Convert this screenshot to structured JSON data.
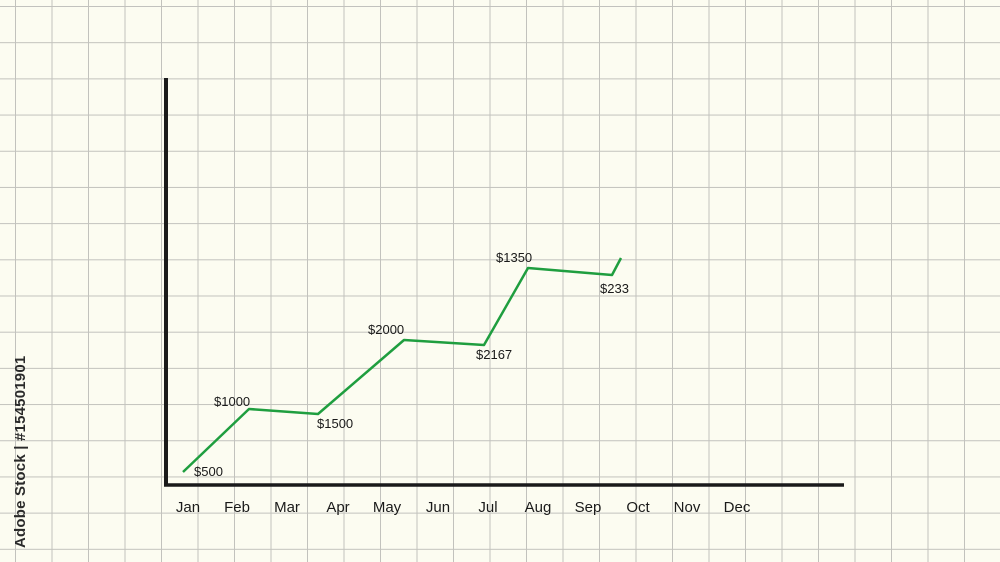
{
  "side_text": "Adobe Stock | #154501901",
  "colors": {
    "line": "#1f9e3f",
    "axis": "#1a1a1a",
    "grid": "#c2c2bd",
    "background": "#fcfcf1"
  },
  "chart_data": {
    "type": "line",
    "title": "",
    "xlabel": "",
    "ylabel": "",
    "grid": true,
    "categories": [
      "Jan",
      "Feb",
      "Mar",
      "Apr",
      "May",
      "Jun",
      "Jul",
      "Aug",
      "Sep",
      "Oct",
      "Nov",
      "Dec"
    ],
    "points": [
      {
        "x": "Jan",
        "label": "$500",
        "label_pos": "below"
      },
      {
        "x": "Feb",
        "label": "$1000",
        "label_pos": "above"
      },
      {
        "x": "Mar",
        "label": "$1500",
        "label_pos": "below"
      },
      {
        "x": "Apr",
        "label": "$2000",
        "label_pos": "above"
      },
      {
        "x": "May",
        "label": "$2167",
        "label_pos": "below"
      },
      {
        "x": "Jun",
        "label": "$1350",
        "label_pos": "above"
      },
      {
        "x": "Jul",
        "label": "$233",
        "label_pos": "below"
      }
    ]
  }
}
